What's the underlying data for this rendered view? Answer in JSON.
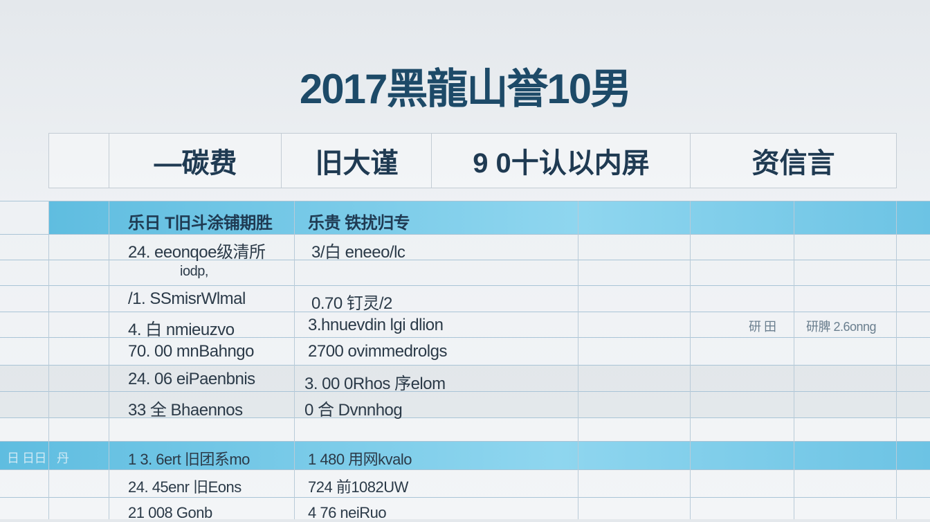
{
  "title": "2017黑龍山誉10男",
  "header": [
    "—碳费",
    "旧大谨",
    "9 0十认以内屏",
    "资信言"
  ],
  "section1": {
    "col1": "乐日 T旧斗涂铺期胜",
    "col2": "乐贵 铁扰归专"
  },
  "rows1": [
    {
      "c1": "24. eeonqoe级清所",
      "c2": "3/白 eneeo/lc"
    },
    {
      "c1": "iodp,",
      "c2": ""
    },
    {
      "c1": "/1. SSmisrWlmal",
      "c2": "0.70 钉灵/2"
    },
    {
      "c1": "4. 白 nmieuzvo",
      "c2": "3.hnuevdin lgi dlion",
      "c5": "研 田",
      "c6": "研脾 2.6onng"
    },
    {
      "c1": "70. 00 mnBahngo",
      "c2": "2700 ovimmedrolgs"
    },
    {
      "c1": "24. 06 eiPaenbnis",
      "c2": "3. 00 0Rhos 序elom"
    },
    {
      "c1": "33 全 Bhaennos",
      "c2": "0 合 Dvnnhog"
    }
  ],
  "section2": {
    "col0": "日 日日",
    "colA": "丹",
    "col1": "1 3. 6ert 旧团系mo",
    "col2": "1 480 用网kvalo"
  },
  "rows2": [
    {
      "c1": "24. 45enr 旧Eons",
      "c2": "724 前1082UW"
    },
    {
      "c1": "21 008 Gonb",
      "c2": "4 76 neiRuo"
    }
  ]
}
